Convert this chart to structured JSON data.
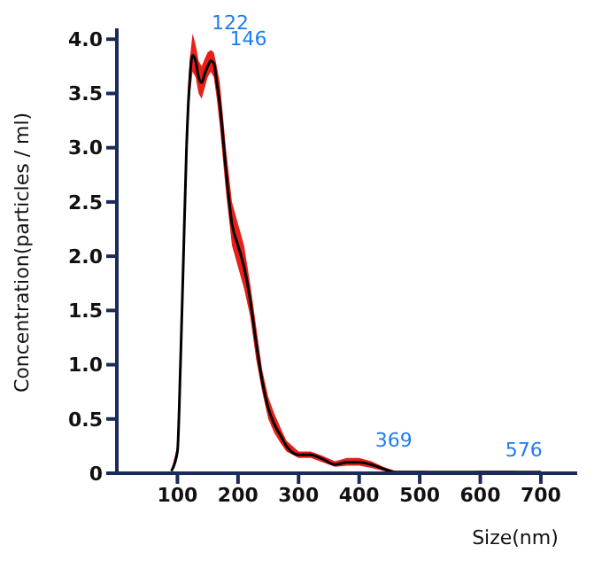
{
  "chart_data": {
    "type": "line",
    "xlabel": "Size(nm)",
    "ylabel": "Concentration(particles / ml)",
    "x": [
      90,
      100,
      105,
      110,
      115,
      120,
      125,
      130,
      135,
      140,
      145,
      150,
      155,
      160,
      165,
      170,
      180,
      190,
      200,
      210,
      220,
      230,
      240,
      250,
      260,
      270,
      280,
      300,
      320,
      340,
      360,
      380,
      400,
      420,
      440,
      460,
      500,
      550,
      600,
      650,
      700
    ],
    "series": [
      {
        "color": "#000000",
        "values": [
          0.02,
          0.2,
          1.0,
          2.0,
          3.0,
          3.6,
          3.85,
          3.8,
          3.65,
          3.6,
          3.68,
          3.75,
          3.8,
          3.78,
          3.6,
          3.4,
          2.8,
          2.3,
          2.1,
          1.9,
          1.6,
          1.2,
          0.85,
          0.6,
          0.45,
          0.35,
          0.25,
          0.17,
          0.17,
          0.13,
          0.08,
          0.1,
          0.1,
          0.08,
          0.04,
          0.01,
          0.01,
          0.01,
          0.01,
          0.01,
          0.01
        ],
        "lower": [
          0.01,
          0.15,
          0.9,
          1.8,
          2.8,
          3.45,
          3.7,
          3.65,
          3.5,
          3.45,
          3.55,
          3.65,
          3.7,
          3.65,
          3.45,
          3.2,
          2.6,
          2.1,
          1.9,
          1.7,
          1.45,
          1.05,
          0.75,
          0.5,
          0.37,
          0.28,
          0.2,
          0.14,
          0.14,
          0.1,
          0.06,
          0.07,
          0.07,
          0.05,
          0.02,
          0,
          0,
          0,
          0,
          0,
          0
        ],
        "upper": [
          0.03,
          0.25,
          1.1,
          2.2,
          3.2,
          3.8,
          4.05,
          3.95,
          3.8,
          3.75,
          3.82,
          3.88,
          3.9,
          3.88,
          3.75,
          3.6,
          3.0,
          2.5,
          2.3,
          2.1,
          1.75,
          1.35,
          0.95,
          0.7,
          0.55,
          0.42,
          0.3,
          0.2,
          0.2,
          0.16,
          0.11,
          0.14,
          0.14,
          0.11,
          0.06,
          0.02,
          0.02,
          0.01,
          0.02,
          0.02,
          0.01
        ]
      }
    ],
    "xlim": [
      0,
      760
    ],
    "xticks": [
      100,
      200,
      300,
      400,
      500,
      600,
      700
    ],
    "ylim": [
      0,
      4.1
    ],
    "yticks": [
      0,
      0.5,
      {
        "value": 1,
        "label": "1.0"
      },
      1.5,
      {
        "value": 2,
        "label": "2.0"
      },
      2.5,
      {
        "value": 3,
        "label": "3.0"
      },
      3.5,
      {
        "value": 4,
        "label": "4.0"
      }
    ],
    "grid": false,
    "legend": false,
    "marker": "none",
    "line_style": "solid",
    "annotations": [
      {
        "text": "122",
        "x": 130,
        "y": 3.85
      },
      {
        "text": "146",
        "x": 160,
        "y": 3.8
      },
      {
        "text": "369",
        "x": 400,
        "y": 0.1
      },
      {
        "text": "576",
        "x": 615,
        "y": 0.01
      }
    ]
  }
}
